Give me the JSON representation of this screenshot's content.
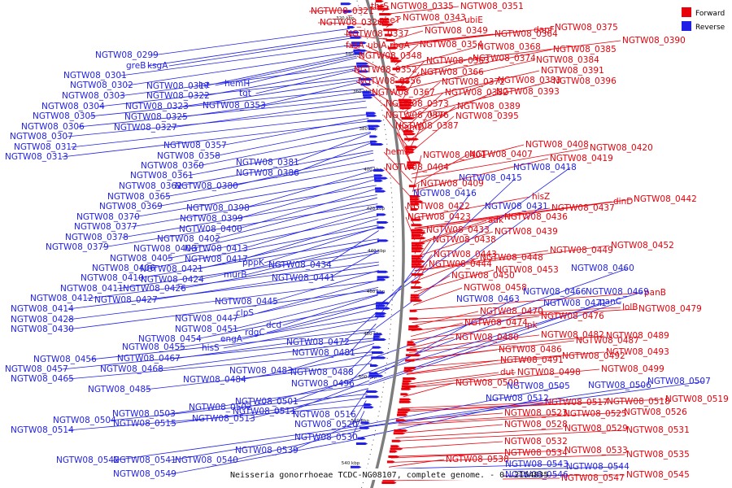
{
  "caption": "Neisseria gonorrhoeae TCDC-NG08107, complete genome. - 0..2154835",
  "legend": [
    {
      "label": "Forward",
      "color": "#e8000b"
    },
    {
      "label": "Reverse",
      "color": "#1f1fe6"
    }
  ],
  "colors": {
    "forward": "#e8000b",
    "reverse": "#1f1fe6",
    "backbone": "#888888"
  },
  "ticks": [
    "320 kbp",
    "340 kbp",
    "360 kbp",
    "380 kbp",
    "400 kbp",
    "420 kbp",
    "440 kbp",
    "460 kbp",
    "480 kbp",
    "500 kbp",
    "520 kbp",
    "540 kbp"
  ],
  "forward_labels": [
    "NGTW08_0321",
    "thrS",
    "NGTW08_0335",
    "NGTW08_0351",
    "NGTW08_0326",
    "pheT",
    "NGTW08_0343",
    "ubiE",
    "NGTW08_0337",
    "NGTW08_0349",
    "NGTW08_0364",
    "dapF",
    "NGTW08_0375",
    "fxsA",
    "ubiA",
    "rbgA",
    "NGTW08_0354",
    "NGTW08_0368",
    "NGTW08_0390",
    "NGTW08_0348",
    "NGTW08_0374",
    "NGTW08_0385",
    "NGTW08_0363",
    "NGTW08_0384",
    "NGTW08_0352",
    "NGTW08_0366",
    "NGTW08_0391",
    "NGTW08_0356",
    "NGTW08_0372",
    "NGTW08_0383",
    "NGTW08_0396",
    "NGTW08_0367",
    "NGTW08_0382",
    "NGTW08_0393",
    "NGTW08_0373",
    "NGTW08_0389",
    "NGTW08_0376",
    "upp",
    "NGTW08_0395",
    "hemD",
    "NGTW08_0387",
    "NGTW08_0408",
    "NGTW08_0420",
    "hemE",
    "NGTW08_0407",
    "NGTW08_0419",
    "NGTW08_0401",
    "NGTW08_0404",
    "NGTW08_0409",
    "hisZ",
    "NGTW08_0422",
    "NGTW08_0437",
    "dinD",
    "NGTW08_0442",
    "NGTW08_0423",
    "adk",
    "NGTW08_0436",
    "NGTW08_0433",
    "NGTW08_0439",
    "NGTW08_0438",
    "NGTW08_0449",
    "NGTW08_0452",
    "NGTW08_0443",
    "NGTW08_0448",
    "NGTW08_0444",
    "NGTW08_0453",
    "NGTW08_0450",
    "NGTW08_0458",
    "panB",
    "lolB",
    "NGTW08_0479",
    "NGTW08_0470",
    "NGTW08_0476",
    "NGTW08_0474",
    "ipk",
    "NGTW08_0480",
    "NGTW08_0482",
    "NGTW08_0489",
    "NGTW08_0486",
    "NGTW08_0487",
    "NGTW08_0493",
    "NGTW08_0491",
    "NGTW08_0492",
    "dut",
    "NGTW08_0498",
    "NGTW08_0499",
    "NGTW08_0500",
    "NGTW08_0517",
    "NGTW08_0518",
    "NGTW08_0519",
    "NGTW08_0523",
    "NGTW08_0525",
    "NGTW08_0526",
    "NGTW08_0528",
    "NGTW08_0529",
    "NGTW08_0531",
    "NGTW08_0532",
    "NGTW08_0534",
    "NGTW08_0533",
    "NGTW08_0535",
    "NGTW08_0538",
    "NGTW08_0545",
    "NGTW08_0547"
  ],
  "reverse_labels": [
    "NGTW08_0299",
    "greB",
    "ksgA",
    "NGTW08_0301",
    "NGTW08_0302",
    "NGTW08_0317",
    "lnt",
    "hemH",
    "NGTW08_0303",
    "NGTW08_0322",
    "tgt",
    "NGTW08_0304",
    "NGTW08_0323",
    "NGTW08_0353",
    "NGTW08_0305",
    "NGTW08_0325",
    "NGTW08_0306",
    "NGTW08_0327",
    "NGTW08_0307",
    "NGTW08_0312",
    "NGTW08_0313",
    "NGTW08_0357",
    "NGTW08_0358",
    "NGTW08_0360",
    "NGTW08_0381",
    "NGTW08_0361",
    "NGTW08_0386",
    "NGTW08_0362",
    "NGTW08_0380",
    "NGTW08_0365",
    "NGTW08_0369",
    "NGTW08_0398",
    "NGTW08_0370",
    "NGTW08_0399",
    "NGTW08_0377",
    "NGTW08_0400",
    "NGTW08_0378",
    "NGTW08_0402",
    "NGTW08_0379",
    "NGTW08_0403",
    "NGTW08_0413",
    "NGTW08_0405",
    "NGTW08_0417",
    "NGTW08_0406",
    "NGTW08_0421",
    "pppK",
    "NGTW08_0434",
    "NGTW08_0410",
    "NGTW08_0424",
    "murB",
    "NGTW08_0411",
    "NGTW08_0426",
    "NGTW08_0441",
    "NGTW08_0412",
    "NGTW08_0427",
    "NGTW08_0414",
    "NGTW08_0445",
    "NGTW08_0428",
    "clpS",
    "NGTW08_0430",
    "NGTW08_0447",
    "NGTW08_0451",
    "dcd",
    "NGTW08_0454",
    "rdgC",
    "engA",
    "NGTW08_0472",
    "NGTW08_0455",
    "hisS",
    "NGTW08_0481",
    "NGTW08_0456",
    "NGTW08_0467",
    "NGTW08_0457",
    "NGTW08_0468",
    "NGTW08_0483",
    "NGTW08_0488",
    "NGTW08_0465",
    "NGTW08_0484",
    "NGTW08_0496",
    "NGTW08_0485",
    "NGTW08_0501",
    "NGTW08_0502",
    "NGTW08_0511",
    "NGTW08_0503",
    "NGTW08_0513",
    "NGTW08_0516",
    "NGTW08_0504",
    "NGTW08_0515",
    "NGTW08_0520",
    "NGTW08_0514",
    "NGTW08_0530",
    "NGTW08_0539",
    "NGTW08_0542",
    "NGTW08_0541",
    "NGTW08_0540",
    "NGTW08_0549",
    "NGTW08_0415",
    "NGTW08_0418",
    "NGTW08_0416",
    "NGTW08_0431",
    "NGTW08_0460",
    "NGTW08_0466",
    "NGTW08_0469",
    "NGTW08_0463",
    "NGTW08_0471",
    "panC",
    "NGTW08_0505",
    "NGTW08_0506",
    "NGTW08_0507",
    "NGTW08_0512",
    "NGTW08_0543",
    "NGTW08_0544",
    "NGTW08_0546"
  ]
}
